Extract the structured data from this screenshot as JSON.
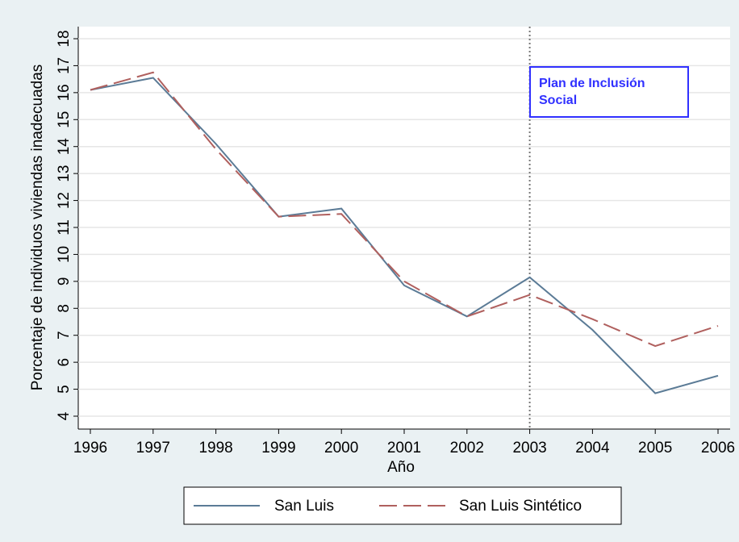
{
  "chart_data": {
    "type": "line",
    "ylabel": "Porcentaje de individuos viviendas inadecuadas",
    "xlabel": "Año",
    "x": [
      1996,
      1997,
      1998,
      1999,
      2000,
      2001,
      2002,
      2003,
      2004,
      2005,
      2006
    ],
    "series": [
      {
        "name": "San Luis",
        "color": "#5b7b96",
        "dash": false,
        "values": [
          16.1,
          16.55,
          14.1,
          11.4,
          11.7,
          8.85,
          7.7,
          9.15,
          7.2,
          4.85,
          5.5
        ]
      },
      {
        "name": "San Luis Sintético",
        "color": "#b0605e",
        "dash": true,
        "values": [
          16.1,
          16.75,
          13.9,
          11.4,
          11.5,
          9.0,
          7.7,
          8.5,
          7.6,
          6.6,
          7.35
        ]
      }
    ],
    "xlim": [
      1996,
      2006
    ],
    "xticks": [
      1996,
      1997,
      1998,
      1999,
      2000,
      2001,
      2002,
      2003,
      2004,
      2005,
      2006
    ],
    "ylim": [
      4,
      18
    ],
    "yticks": [
      4,
      5,
      6,
      7,
      8,
      9,
      10,
      11,
      12,
      13,
      14,
      15,
      16,
      17,
      18
    ],
    "grid": true,
    "vline": 2003,
    "annotation": {
      "lines": [
        "Plan de Inclusión",
        "Social"
      ],
      "color": "#3030ff"
    },
    "legend": "bottom"
  }
}
